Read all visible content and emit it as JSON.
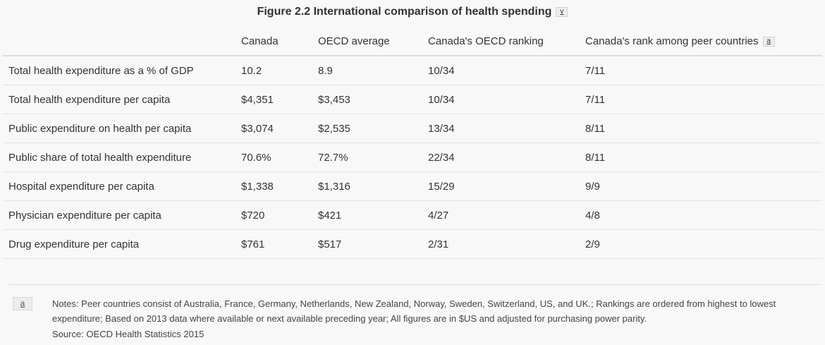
{
  "title": "Figure 2.2 International comparison of health spending",
  "title_footnote_button": "v",
  "table": {
    "headers": [
      "",
      "Canada",
      "OECD average",
      "Canada's OECD ranking",
      "Canada's rank among peer countries"
    ],
    "header_footnote_button": "a",
    "rows": [
      [
        "Total health expenditure as a % of GDP",
        "10.2",
        "8.9",
        "10/34",
        "7/11"
      ],
      [
        "Total health expenditure per capita",
        "$4,351",
        "$3,453",
        "10/34",
        "7/11"
      ],
      [
        "Public expenditure on health per capita",
        "$3,074",
        "$2,535",
        "13/34",
        "8/11"
      ],
      [
        "Public share of total health expenditure",
        "70.6%",
        "72.7%",
        "22/34",
        "8/11"
      ],
      [
        "Hospital expenditure per capita",
        "$1,338",
        "$1,316",
        "15/29",
        "9/9"
      ],
      [
        "Physician expenditure per capita",
        "$720",
        "$421",
        "4/27",
        "4/8"
      ],
      [
        "Drug expenditure per capita",
        "$761",
        "$517",
        "2/31",
        "2/9"
      ]
    ]
  },
  "footnote": {
    "marker": "a",
    "notes": "Notes: Peer countries consist of Australia, France, Germany, Netherlands, New Zealand, Norway, Sweden, Switzerland, US, and UK.; Rankings are ordered from highest to lowest expenditure; Based on 2013 data where available or next available preceding year; All figures are in $US and adjusted for purchasing power parity.",
    "source": "Source: OECD Health Statistics 2015"
  }
}
